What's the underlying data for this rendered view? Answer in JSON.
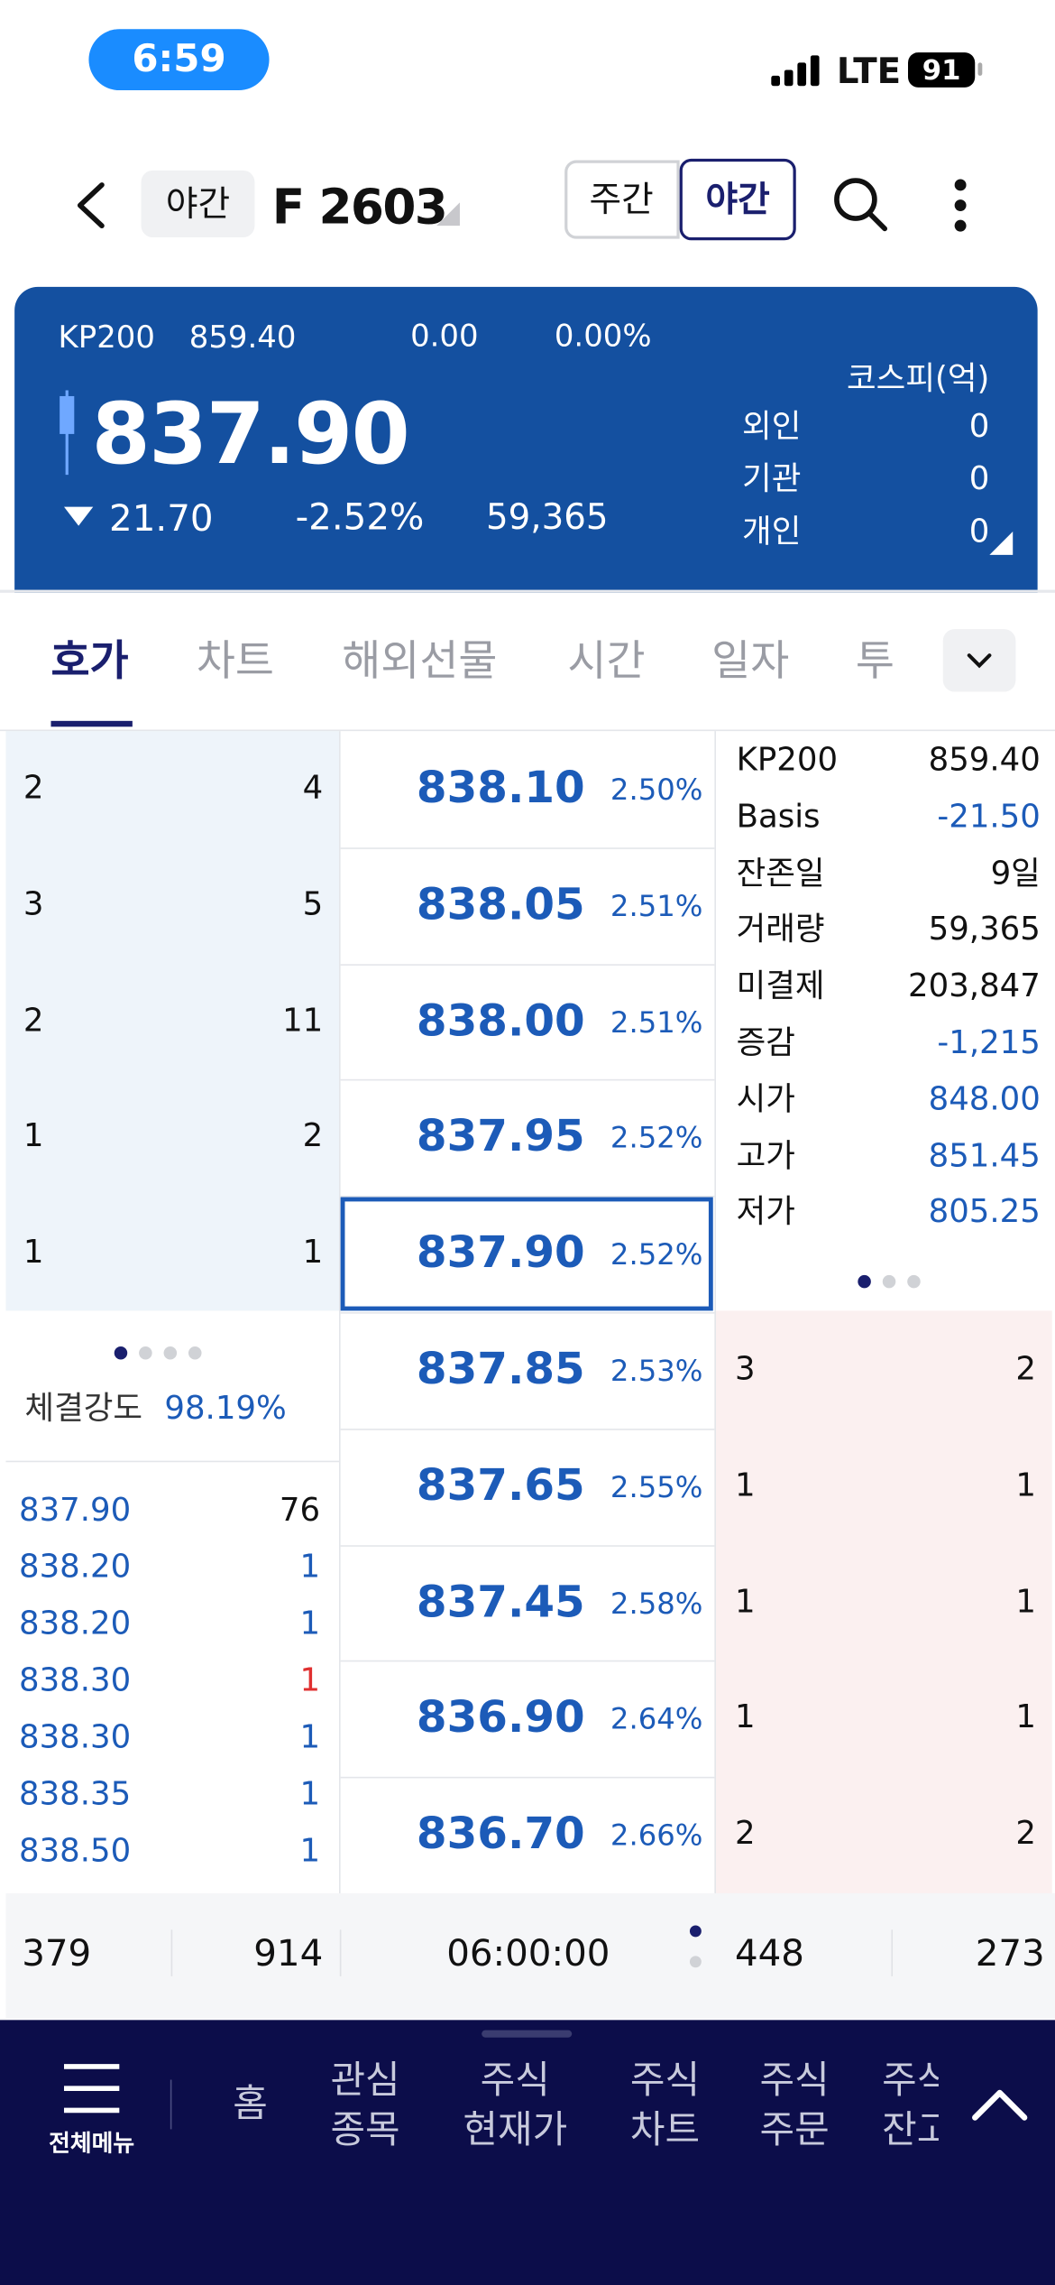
{
  "status_bar": {
    "time": "6:59",
    "network": "LTE",
    "battery": "91"
  },
  "header": {
    "session": "야간",
    "symbol": "F 2603",
    "toggle": [
      "주간",
      "야간"
    ]
  },
  "summary": {
    "index_name": "KP200",
    "index_value": "859.40",
    "index_change": "0.00",
    "index_rate": "0.00%",
    "price": "837.90",
    "change": "21.70",
    "rate": "-2.52%",
    "volume": "59,365",
    "investor_title": "코스피(억)",
    "investors": [
      {
        "name": "외인",
        "value": "0"
      },
      {
        "name": "기관",
        "value": "0"
      },
      {
        "name": "개인",
        "value": "0"
      }
    ]
  },
  "tabs": [
    "호가",
    "차트",
    "해외선물",
    "시간",
    "일자",
    "투"
  ],
  "order_book": {
    "rows": [
      {
        "price": "838.10",
        "rate": "2.50%",
        "count": "2",
        "quantity": "4"
      },
      {
        "price": "838.05",
        "rate": "2.51%",
        "count": "3",
        "quantity": "5"
      },
      {
        "price": "838.00",
        "rate": "2.51%",
        "count": "2",
        "quantity": "11"
      },
      {
        "price": "837.95",
        "rate": "2.52%",
        "count": "1",
        "quantity": "2"
      },
      {
        "price": "837.90",
        "rate": "2.52%",
        "count": "1",
        "quantity": "1"
      },
      {
        "price": "837.85",
        "rate": "2.53%",
        "count": "3",
        "quantity": "2"
      },
      {
        "price": "837.65",
        "rate": "2.55%",
        "count": "1",
        "quantity": "1"
      },
      {
        "price": "837.45",
        "rate": "2.58%",
        "count": "1",
        "quantity": "1"
      },
      {
        "price": "836.90",
        "rate": "2.64%",
        "count": "1",
        "quantity": "1"
      },
      {
        "price": "836.70",
        "rate": "2.66%",
        "count": "2",
        "quantity": "2"
      }
    ]
  },
  "info": [
    {
      "label": "KP200",
      "value": "859.40",
      "color": "#111111"
    },
    {
      "label": "Basis",
      "value": "-21.50",
      "color": "#1c5bb8"
    },
    {
      "label": "잔존일",
      "value": "9일",
      "color": "#111111"
    },
    {
      "label": "거래량",
      "value": "59,365",
      "color": "#111111"
    },
    {
      "label": "미결제",
      "value": "203,847",
      "color": "#111111"
    },
    {
      "label": "증감",
      "value": "-1,215",
      "color": "#1c5bb8"
    },
    {
      "label": "시가",
      "value": "848.00",
      "color": "#1c5bb8"
    },
    {
      "label": "고가",
      "value": "851.45",
      "color": "#1c5bb8"
    },
    {
      "label": "저가",
      "value": "805.25",
      "color": "#1c5bb8"
    }
  ],
  "strength": {
    "label": "체결강도",
    "value": "98.19%"
  },
  "trades": [
    {
      "price": "837.90",
      "quantity": "76",
      "color": "#111111"
    },
    {
      "price": "838.20",
      "quantity": "1",
      "color": "#1c5bb8"
    },
    {
      "price": "838.20",
      "quantity": "1",
      "color": "#1c5bb8"
    },
    {
      "price": "838.30",
      "quantity": "1",
      "color": "#e03030"
    },
    {
      "price": "838.30",
      "quantity": "1",
      "color": "#1c5bb8"
    },
    {
      "price": "838.35",
      "quantity": "1",
      "color": "#1c5bb8"
    },
    {
      "price": "838.50",
      "quantity": "1",
      "color": "#1c5bb8"
    }
  ],
  "totals": [
    "379",
    "914",
    "06:00:00",
    "448",
    "273"
  ],
  "nav": {
    "menu": "전체메뉴",
    "items": [
      [
        "홈"
      ],
      [
        "관심",
        "종목"
      ],
      [
        "주식",
        "현재가"
      ],
      [
        "주식",
        "차트"
      ],
      [
        "주식",
        "주문"
      ],
      [
        "주식",
        "잔고"
      ]
    ]
  }
}
